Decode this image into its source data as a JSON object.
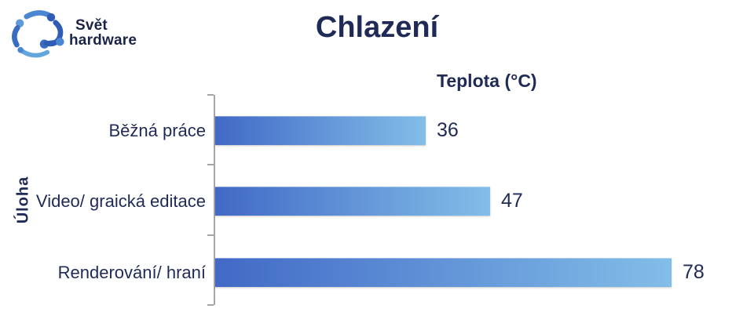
{
  "logo": {
    "line1": "Svět",
    "line2": "hardware"
  },
  "chart_data": {
    "type": "bar",
    "orientation": "horizontal",
    "title": "Chlazení",
    "value_axis_title": "Teplota (°C)",
    "category_axis_title": "Úloha",
    "categories": [
      "Běžná práce",
      "Video/ graická editace",
      "Renderování/ hraní"
    ],
    "values": [
      36,
      47,
      78
    ],
    "xlim": [
      0,
      80
    ],
    "grid": false,
    "legend": "none",
    "colors": {
      "bar_gradient_start": "#4169c6",
      "bar_gradient_end": "#82bee8",
      "text": "#1f2a56",
      "axis": "#a6a6a6",
      "background": "#ffffff"
    }
  }
}
